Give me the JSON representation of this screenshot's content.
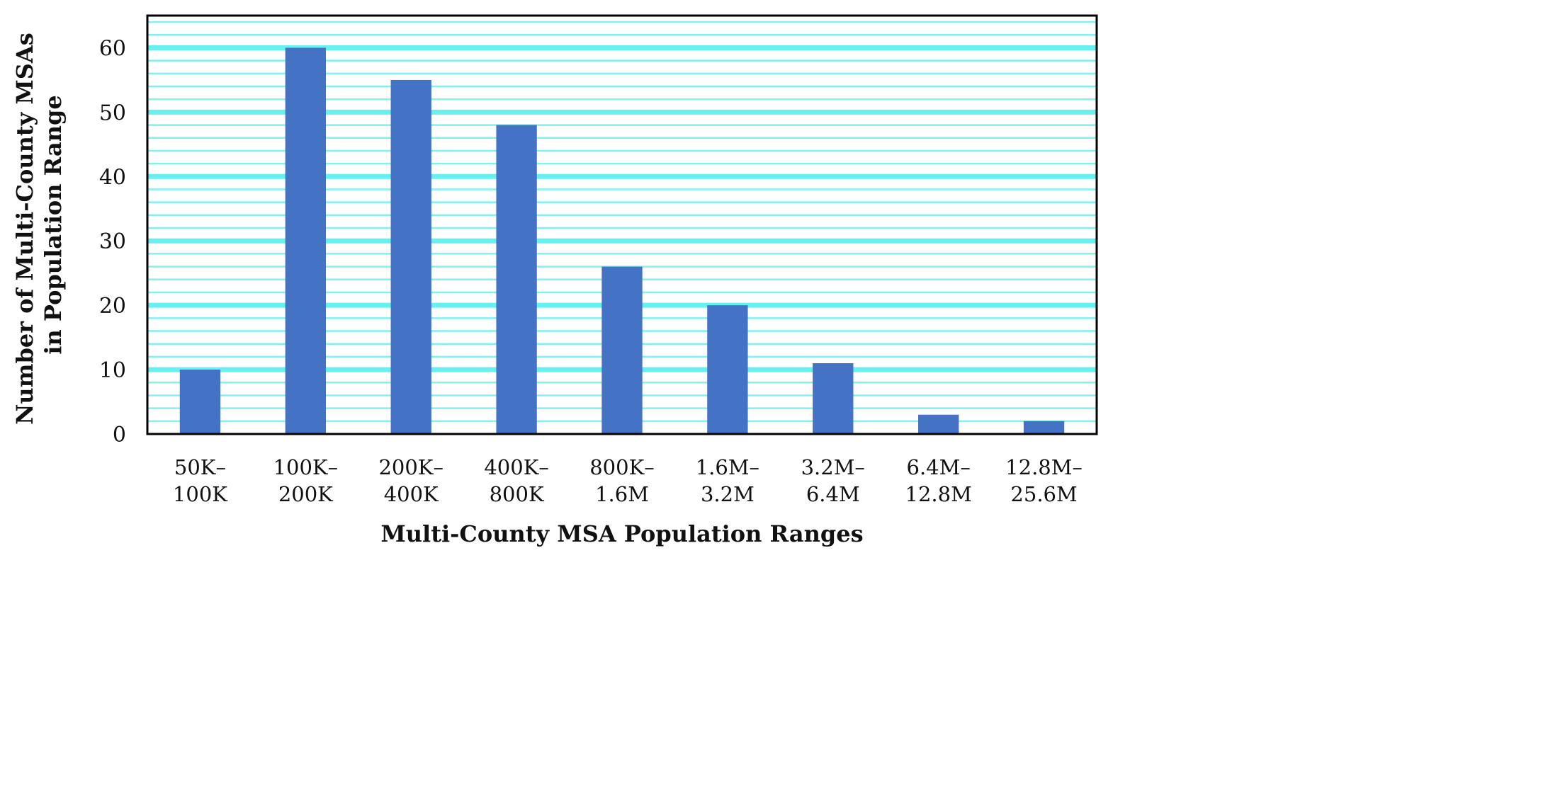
{
  "chart_data": {
    "type": "bar",
    "title": "",
    "xlabel": "Multi-County MSA Population Ranges",
    "ylabel_lines": [
      "Number of Multi-County MSAs",
      "in Population Range"
    ],
    "categories": [
      [
        "50K–",
        "100K"
      ],
      [
        "100K–",
        "200K"
      ],
      [
        "200K–",
        "400K"
      ],
      [
        "400K–",
        "800K"
      ],
      [
        "800K–",
        "1.6M"
      ],
      [
        "1.6M–",
        "3.2M"
      ],
      [
        "3.2M–",
        "6.4M"
      ],
      [
        "6.4M–",
        "12.8M"
      ],
      [
        "12.8M–",
        "25.6M"
      ]
    ],
    "values": [
      10,
      60,
      55,
      48,
      26,
      20,
      11,
      3,
      2
    ],
    "ylim": [
      0,
      65
    ],
    "yticks": [
      0,
      10,
      20,
      30,
      40,
      50,
      60
    ],
    "minor_grid_step": 2,
    "grid": true,
    "colors": {
      "bar": "#4472C4",
      "grid_major": "#66F0F0",
      "grid_minor": "#80F2F2",
      "axis": "#000000"
    }
  }
}
